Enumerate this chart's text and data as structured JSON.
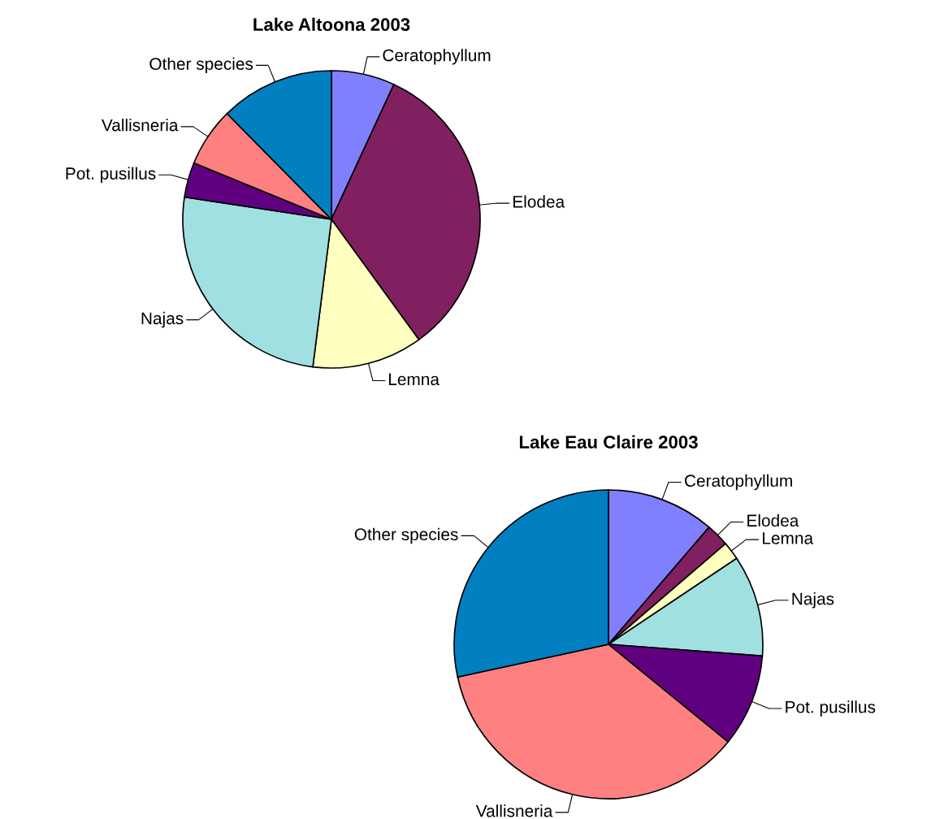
{
  "chart_data": [
    {
      "type": "pie",
      "title": "Lake Altoona 2003",
      "categories": [
        "Ceratophyllum",
        "Elodea",
        "Lemna",
        "Najas",
        "Pot. pusillus",
        "Vallisneria",
        "Other species"
      ],
      "values": [
        6.9,
        33.1,
        12,
        25.4,
        3.8,
        6.4,
        12.4
      ],
      "colors": [
        "#8080ff",
        "#802060",
        "#ffffc0",
        "#a0e0e0",
        "#600080",
        "#ff8080",
        "#0080c0"
      ]
    },
    {
      "type": "pie",
      "title": "Lake Eau Claire 2003",
      "categories": [
        "Ceratophyllum",
        "Elodea",
        "Lemna",
        "Najas",
        "Pot. pusillus",
        "Vallisneria",
        "Other species"
      ],
      "values": [
        11.3,
        2.4,
        1.9,
        10.6,
        9.7,
        35.7,
        28.4
      ],
      "colors": [
        "#8080ff",
        "#802060",
        "#ffffc0",
        "#a0e0e0",
        "#600080",
        "#ff8080",
        "#0080c0"
      ]
    }
  ]
}
